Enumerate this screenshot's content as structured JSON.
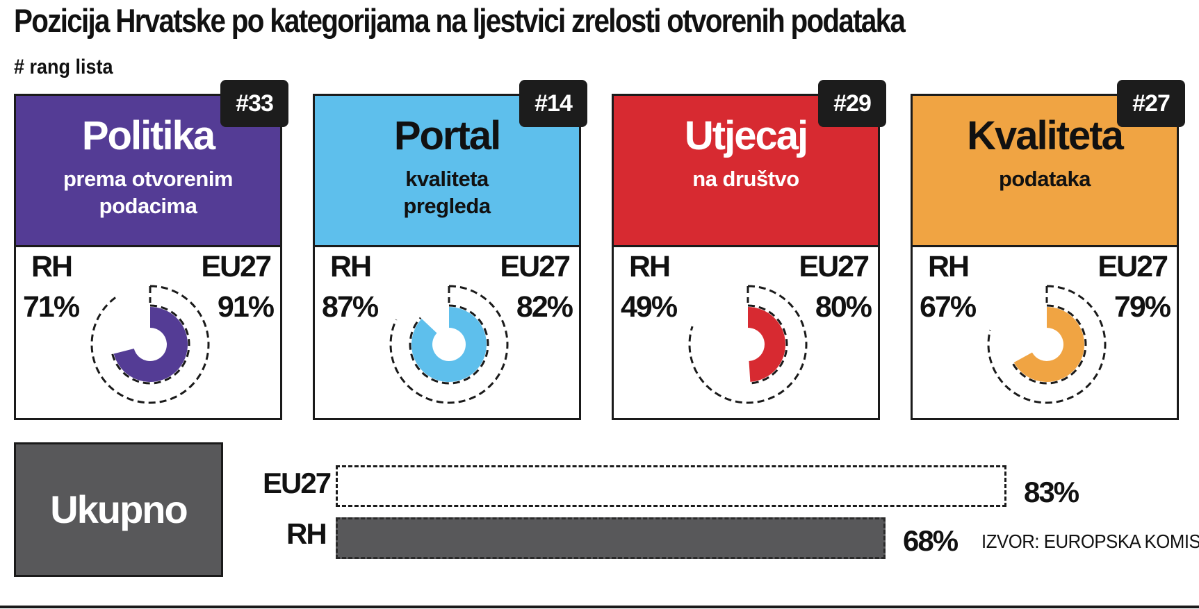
{
  "title": "Pozicija Hrvatske po kategorijama na ljestvici zrelosti otvorenih podataka",
  "rank_legend": "# rang lista",
  "chart_data": {
    "type": "donut",
    "categories": [
      {
        "name": "Politika",
        "subtitle": [
          "prema otvorenim",
          "podacima"
        ],
        "rank": "#33",
        "rh": 71,
        "eu27": 91,
        "color": "#543c95",
        "text_color": "#ffffff"
      },
      {
        "name": "Portal",
        "subtitle": [
          "kvaliteta",
          "pregleda"
        ],
        "rank": "#14",
        "rh": 87,
        "eu27": 82,
        "color": "#5ebfec",
        "text_color": "#111111"
      },
      {
        "name": "Utjecaj",
        "subtitle": [
          "na društvo"
        ],
        "rank": "#29",
        "rh": 49,
        "eu27": 80,
        "color": "#d72a31",
        "text_color": "#ffffff"
      },
      {
        "name": "Kvaliteta",
        "subtitle": [
          "podataka"
        ],
        "rank": "#27",
        "rh": 67,
        "eu27": 79,
        "color": "#f0a443",
        "text_color": "#111111"
      }
    ],
    "series_labels": {
      "rh": "RH",
      "eu27": "EU27"
    },
    "total": {
      "label": "Ukupno",
      "bars": [
        {
          "name": "EU27",
          "value": 83,
          "value_label": "83%"
        },
        {
          "name": "RH",
          "value": 68,
          "value_label": "68%"
        }
      ]
    }
  },
  "source": "IZVOR: EUROPSKA KOMISIJA"
}
